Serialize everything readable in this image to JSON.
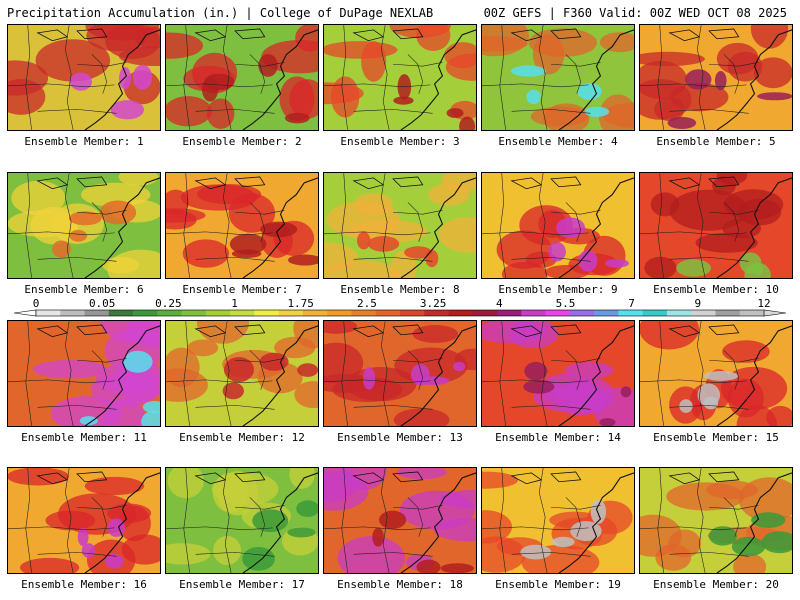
{
  "header": {
    "title": "Precipitation Accumulation (in.) | College of DuPage NEXLAB",
    "run_info": "00Z GEFS | F360 Valid: 00Z WED OCT 08 2025"
  },
  "members": [
    {
      "label": "Ensemble Member: 1",
      "fill": "#d9c23a",
      "accent": "#c8282a",
      "hot": "#d246d2"
    },
    {
      "label": "Ensemble Member: 2",
      "fill": "#7fbf3f",
      "accent": "#d9262a",
      "hot": "#b21e1e"
    },
    {
      "label": "Ensemble Member: 3",
      "fill": "#a5cf3a",
      "accent": "#e5472a",
      "hot": "#b21e1e"
    },
    {
      "label": "Ensemble Member: 4",
      "fill": "#8fc43c",
      "accent": "#e0662b",
      "hot": "#56e0ef"
    },
    {
      "label": "Ensemble Member: 5",
      "fill": "#f0a830",
      "accent": "#c8282a",
      "hot": "#9a1e5a"
    },
    {
      "label": "Ensemble Member: 6",
      "fill": "#7fbf3f",
      "accent": "#f0d23a",
      "hot": "#e36b2b"
    },
    {
      "label": "Ensemble Member: 7",
      "fill": "#f0a830",
      "accent": "#d9262a",
      "hot": "#b21e1e"
    },
    {
      "label": "Ensemble Member: 8",
      "fill": "#a5cf3a",
      "accent": "#f0b03a",
      "hot": "#e5472a"
    },
    {
      "label": "Ensemble Member: 9",
      "fill": "#f0c030",
      "accent": "#d9262a",
      "hot": "#c83cc8"
    },
    {
      "label": "Ensemble Member: 10",
      "fill": "#e5472a",
      "accent": "#b21e1e",
      "hot": "#7fbf3f"
    },
    {
      "label": "Ensemble Member: 11",
      "fill": "#e0662b",
      "accent": "#d246d2",
      "hot": "#56e0ef"
    },
    {
      "label": "Ensemble Member: 12",
      "fill": "#c5cf3a",
      "accent": "#e0662b",
      "hot": "#c8282a"
    },
    {
      "label": "Ensemble Member: 13",
      "fill": "#e0662b",
      "accent": "#c8282a",
      "hot": "#c83cc8"
    },
    {
      "label": "Ensemble Member: 14",
      "fill": "#e5472a",
      "accent": "#c83cc8",
      "hot": "#9a1e5a"
    },
    {
      "label": "Ensemble Member: 15",
      "fill": "#f0a830",
      "accent": "#d9262a",
      "hot": "#c0c0c0"
    },
    {
      "label": "Ensemble Member: 16",
      "fill": "#f0a830",
      "accent": "#d9262a",
      "hot": "#c83cc8"
    },
    {
      "label": "Ensemble Member: 17",
      "fill": "#7fbf3f",
      "accent": "#c5cf3a",
      "hot": "#3a9a3a"
    },
    {
      "label": "Ensemble Member: 18",
      "fill": "#e0662b",
      "accent": "#c83cc8",
      "hot": "#b21e1e"
    },
    {
      "label": "Ensemble Member: 19",
      "fill": "#f0c030",
      "accent": "#e5472a",
      "hot": "#c0c0c0"
    },
    {
      "label": "Ensemble Member: 20",
      "fill": "#c5cf3a",
      "accent": "#e0662b",
      "hot": "#3a9a3a"
    }
  ],
  "legend": {
    "tick_labels": [
      "0",
      "0.05",
      "0.25",
      "1",
      "1.75",
      "2.5",
      "3.25",
      "4",
      "5.5",
      "7",
      "9",
      "12"
    ],
    "colors": [
      "#e6e6e6",
      "#bdbdbd",
      "#969696",
      "#3a7a3a",
      "#3a9a3a",
      "#5aae3a",
      "#7fbf3f",
      "#a5cf3a",
      "#c5df3a",
      "#f0f03a",
      "#f0d23a",
      "#f0b03a",
      "#f09a2a",
      "#e5802a",
      "#e0662b",
      "#d9462a",
      "#c8282a",
      "#b21e1e",
      "#9a1e3a",
      "#9a1e7a",
      "#c83cc8",
      "#e646e6",
      "#9a6ee6",
      "#6a9ae6",
      "#56e0ef",
      "#3ac8c8",
      "#9ae6e6",
      "#d2d2d2",
      "#a0a0a0",
      "#c0c0c0"
    ]
  }
}
